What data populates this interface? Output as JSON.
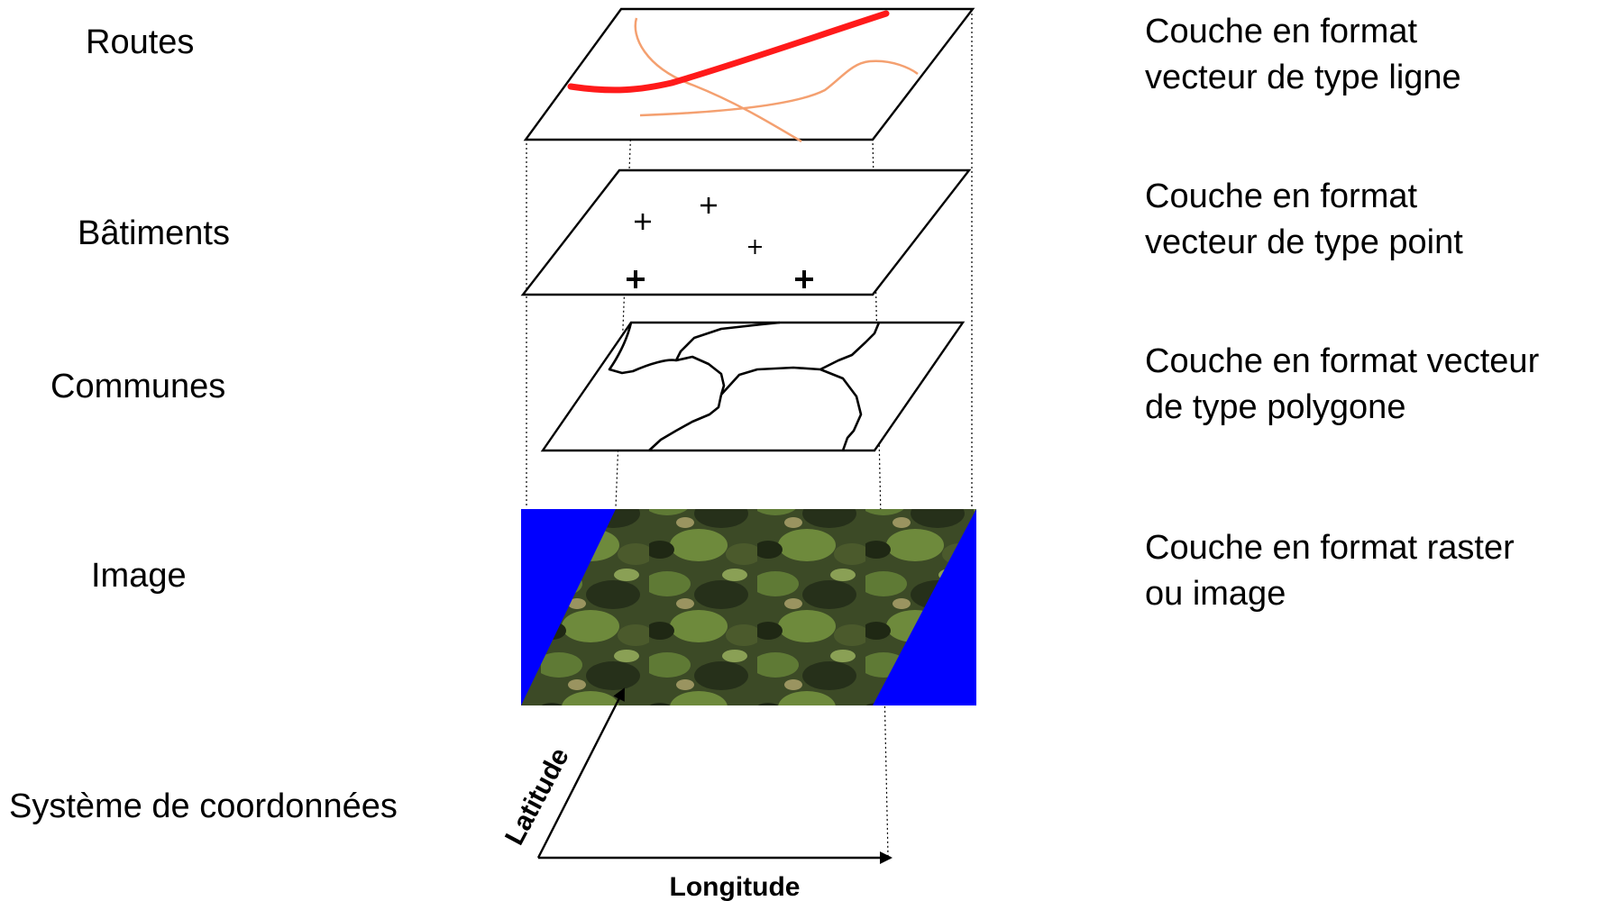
{
  "layers": [
    {
      "id": "routes",
      "label": "Routes",
      "description_lines": [
        "Couche en format",
        "vecteur de type ligne"
      ]
    },
    {
      "id": "batiments",
      "label": "Bâtiments",
      "description_lines": [
        "Couche en format",
        "vecteur de type point"
      ]
    },
    {
      "id": "communes",
      "label": "Communes",
      "description_lines": [
        "Couche en format vecteur",
        "de type polygone"
      ]
    },
    {
      "id": "image",
      "label": "Image",
      "description_lines": [
        "Couche en format raster",
        "ou image"
      ]
    },
    {
      "id": "coordonnees",
      "label": "Système de coordonnées",
      "description_lines": []
    }
  ],
  "axes": {
    "latitude": "Latitude",
    "longitude": "Longitude"
  },
  "colors": {
    "main_road": "#ff1a1a",
    "secondary_roads": "#f4a070",
    "raster_background": "#0000ff",
    "outline": "#000000"
  }
}
